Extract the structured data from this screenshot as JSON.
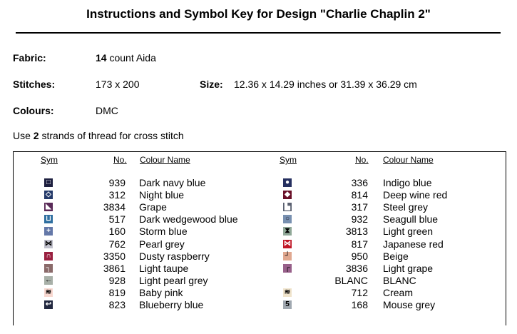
{
  "title": "Instructions and Symbol Key for Design \"Charlie Chaplin 2\"",
  "fabric": {
    "label": "Fabric:",
    "count": "14",
    "rest": " count Aida"
  },
  "stitches": {
    "label": "Stitches:",
    "value": "173 x 200"
  },
  "size": {
    "label": "Size:",
    "value": "12.36 x 14.29 inches or 31.39 x 36.29 cm"
  },
  "colours": {
    "label": "Colours:",
    "value": "DMC"
  },
  "strands": {
    "pre": "Use ",
    "n": "2",
    "post": " strands of thread for cross stitch"
  },
  "headers": {
    "sym": "Sym",
    "no": "No.",
    "name": "Colour Name"
  },
  "left": [
    {
      "sym": "□",
      "bg": "#1e2040",
      "fg": "#fff",
      "no": "939",
      "name": "Dark navy blue"
    },
    {
      "sym": "◇",
      "bg": "#243a6a",
      "fg": "#fff",
      "no": "312",
      "name": "Night blue"
    },
    {
      "sym": "◣",
      "bg": "#5a2a58",
      "fg": "#fff",
      "no": "3834",
      "name": "Grape"
    },
    {
      "sym": "⊔",
      "bg": "#2f6fa0",
      "fg": "#fff",
      "no": "517",
      "name": "Dark wedgewood blue"
    },
    {
      "sym": "+",
      "bg": "#6478a8",
      "fg": "#fff",
      "no": "160",
      "name": "Storm blue"
    },
    {
      "sym": "⋈",
      "bg": "#c0c0cc",
      "fg": "#000",
      "no": "762",
      "name": "Pearl grey"
    },
    {
      "sym": "∩",
      "bg": "#9a2040",
      "fg": "#fff",
      "no": "3350",
      "name": "Dusty raspberry"
    },
    {
      "sym": "┐",
      "bg": "#8a6a6a",
      "fg": "#fff",
      "no": "3861",
      "name": "Light taupe"
    },
    {
      "sym": "←",
      "bg": "#a8b0a8",
      "fg": "#000",
      "no": "928",
      "name": "Light pearl grey"
    },
    {
      "sym": "≋",
      "bg": "#f8d8d0",
      "fg": "#000",
      "no": "819",
      "name": "Baby pink"
    },
    {
      "sym": "↩",
      "bg": "#222840",
      "fg": "#fff",
      "no": "823",
      "name": "Blueberry blue"
    }
  ],
  "right": [
    {
      "sym": "●",
      "bg": "#263060",
      "fg": "#fff",
      "no": "336",
      "name": "Indigo blue"
    },
    {
      "sym": "◆",
      "bg": "#6a1028",
      "fg": "#fff",
      "no": "814",
      "name": "Deep wine red"
    },
    {
      "sym": "▙",
      "bg": "#5a6070",
      "fg": "#fff",
      "no": "317",
      "name": "Steel grey"
    },
    {
      "sym": "○",
      "bg": "#7890b0",
      "fg": "#223",
      "no": "932",
      "name": "Seagull blue"
    },
    {
      "sym": "⧗",
      "bg": "#90a898",
      "fg": "#000",
      "no": "3813",
      "name": "Light green"
    },
    {
      "sym": "⋈",
      "bg": "#c01828",
      "fg": "#fff",
      "no": "817",
      "name": "Japanese red"
    },
    {
      "sym": "┘",
      "bg": "#e0a890",
      "fg": "#000",
      "no": "950",
      "name": "Beige"
    },
    {
      "sym": "┌",
      "bg": "#98608a",
      "fg": "#000",
      "no": "3836",
      "name": "Light grape"
    },
    {
      "sym": "",
      "bg": "",
      "fg": "",
      "no": "BLANC",
      "name": "BLANC"
    },
    {
      "sym": "≋",
      "bg": "#f0e4cc",
      "fg": "#000",
      "no": "712",
      "name": "Cream"
    },
    {
      "sym": "5",
      "bg": "#a0a8b0",
      "fg": "#000",
      "no": "168",
      "name": "Mouse grey"
    }
  ]
}
